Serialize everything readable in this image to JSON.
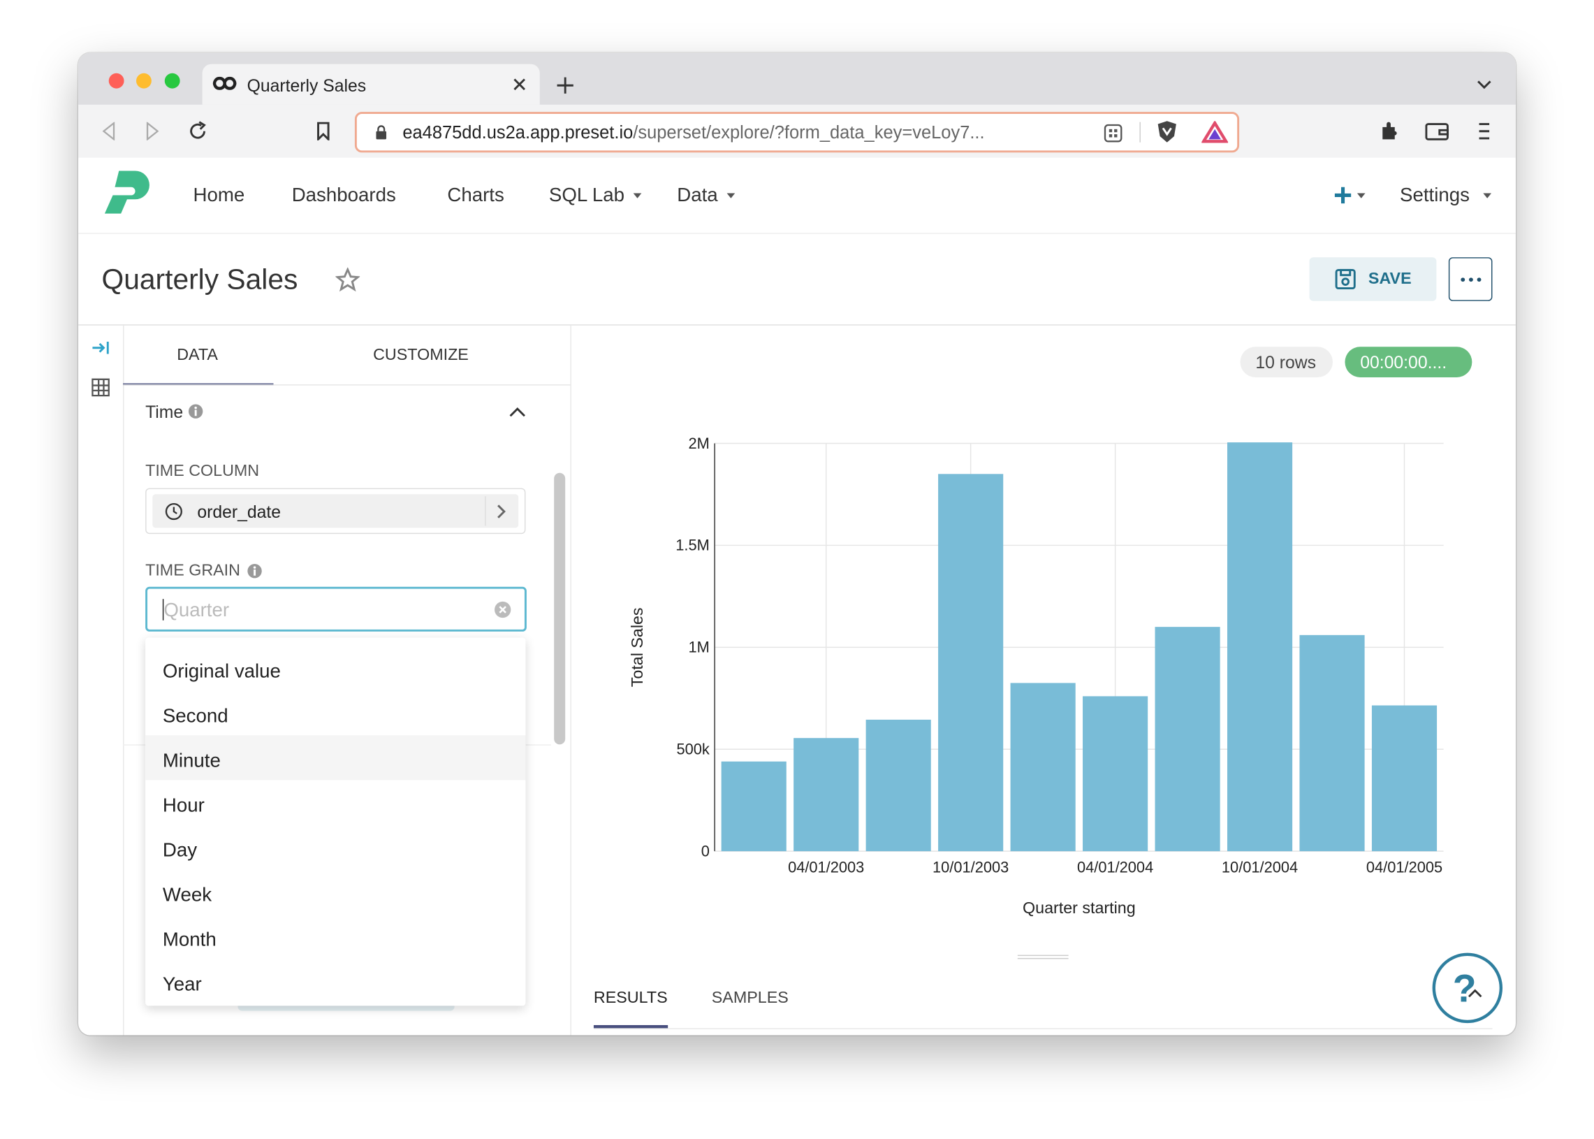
{
  "browser": {
    "tab_title": "Quarterly Sales",
    "url_host": "ea4875dd.us2a.app.preset.io",
    "url_path": "/superset/explore/?form_data_key=veLoy7..."
  },
  "nav": {
    "items": [
      "Home",
      "Dashboards",
      "Charts",
      "SQL Lab",
      "Data"
    ],
    "settings": "Settings"
  },
  "header": {
    "title": "Quarterly Sales",
    "save": "SAVE"
  },
  "panel": {
    "tabs": [
      "DATA",
      "CUSTOMIZE"
    ],
    "section": "Time",
    "time_column_label": "TIME COLUMN",
    "time_column": "order_date",
    "time_grain_label": "TIME GRAIN",
    "time_grain_placeholder": "Quarter",
    "options": [
      "Original value",
      "Second",
      "Minute",
      "Hour",
      "Day",
      "Week",
      "Month",
      "Year"
    ]
  },
  "status": {
    "rows": "10 rows",
    "timer": "00:00:00...."
  },
  "chart_data": {
    "type": "bar",
    "x_label": "Quarter starting",
    "y_label": "Total Sales",
    "categories": [
      null,
      "04/01/2003",
      null,
      "10/01/2003",
      null,
      "04/01/2004",
      null,
      "10/01/2004",
      null,
      "04/01/2005"
    ],
    "values": [
      440000,
      555000,
      645000,
      1850000,
      825000,
      760000,
      1100000,
      2005000,
      1060000,
      715000
    ],
    "color": "#79bcd7",
    "ylim": [
      0,
      2000000
    ],
    "yticks": [
      0,
      {
        "value": 500000,
        "label": "500k"
      },
      {
        "value": 1000000,
        "label": "1M"
      },
      {
        "value": 1500000,
        "label": "1.5M"
      },
      {
        "value": 2000000,
        "label": "2M"
      }
    ],
    "grid": true
  },
  "results_tabs": [
    "RESULTS",
    "SAMPLES"
  ],
  "help": "?"
}
